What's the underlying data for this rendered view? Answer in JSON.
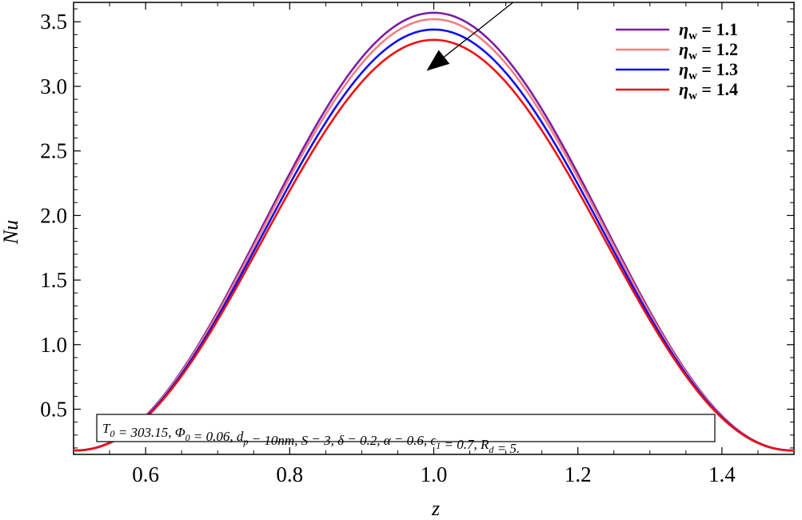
{
  "chart_data": {
    "type": "line",
    "title": "",
    "xlabel": "z",
    "ylabel": "Nu",
    "xlim": [
      0.5,
      1.5
    ],
    "ylim": [
      0.15,
      3.65
    ],
    "xticks": [
      "0.6",
      "0.8",
      "1.0",
      "1.2",
      "1.4"
    ],
    "yticks": [
      "0.5",
      "1.0",
      "1.5",
      "2.0",
      "2.5",
      "3.0",
      "3.5"
    ],
    "grid": false,
    "legend_position": "top-right",
    "series": [
      {
        "name": "ηw = 1.1",
        "legend_symbol": "η",
        "legend_sub": "w",
        "legend_value": " = 1.1",
        "color": "#7b1fa2",
        "peak": 3.57,
        "min": 0.18
      },
      {
        "name": "ηw = 1.2",
        "legend_symbol": "η",
        "legend_sub": "w",
        "legend_value": " = 1.2",
        "color": "#f08080",
        "peak": 3.52,
        "min": 0.18
      },
      {
        "name": "ηw = 1.3",
        "legend_symbol": "η",
        "legend_sub": "w",
        "legend_value": " = 1.3",
        "color": "#1010ee",
        "peak": 3.44,
        "min": 0.18
      },
      {
        "name": "ηw = 1.4",
        "legend_symbol": "η",
        "legend_sub": "w",
        "legend_value": " = 1.4",
        "color": "#ee1111",
        "peak": 3.36,
        "min": 0.18
      }
    ],
    "x": [
      0.5,
      0.55,
      0.6,
      0.65,
      0.7,
      0.75,
      0.8,
      0.85,
      0.9,
      0.95,
      1.0,
      1.05,
      1.1,
      1.15,
      1.2,
      1.25,
      1.3,
      1.35,
      1.4,
      1.45,
      1.5
    ],
    "annotation": {
      "text": "T0 = 303.15, Φ0 = 0.06, dp = 10nm, S = 3, δ = 0.2, α = 0.6, ϵ1 = 0.7, Rd = 5.",
      "parts": [
        {
          "t": "T",
          "sub": "0"
        },
        {
          "t": " = 303.15, "
        },
        {
          "t": "Φ",
          "sub": "0"
        },
        {
          "t": " = 0.06, "
        },
        {
          "t": "d",
          "sub": "p"
        },
        {
          "t": " = 10nm, S = 3, δ = 0.2, α = 0.6, "
        },
        {
          "t": "ϵ",
          "sub": "1"
        },
        {
          "t": " = 0.7, "
        },
        {
          "t": "R",
          "sub": "d"
        },
        {
          "t": " = 5."
        }
      ]
    },
    "arrow": {
      "from": [
        1.11,
        3.65
      ],
      "to": [
        0.99,
        3.12
      ],
      "meaning": "increasing ηw"
    }
  }
}
